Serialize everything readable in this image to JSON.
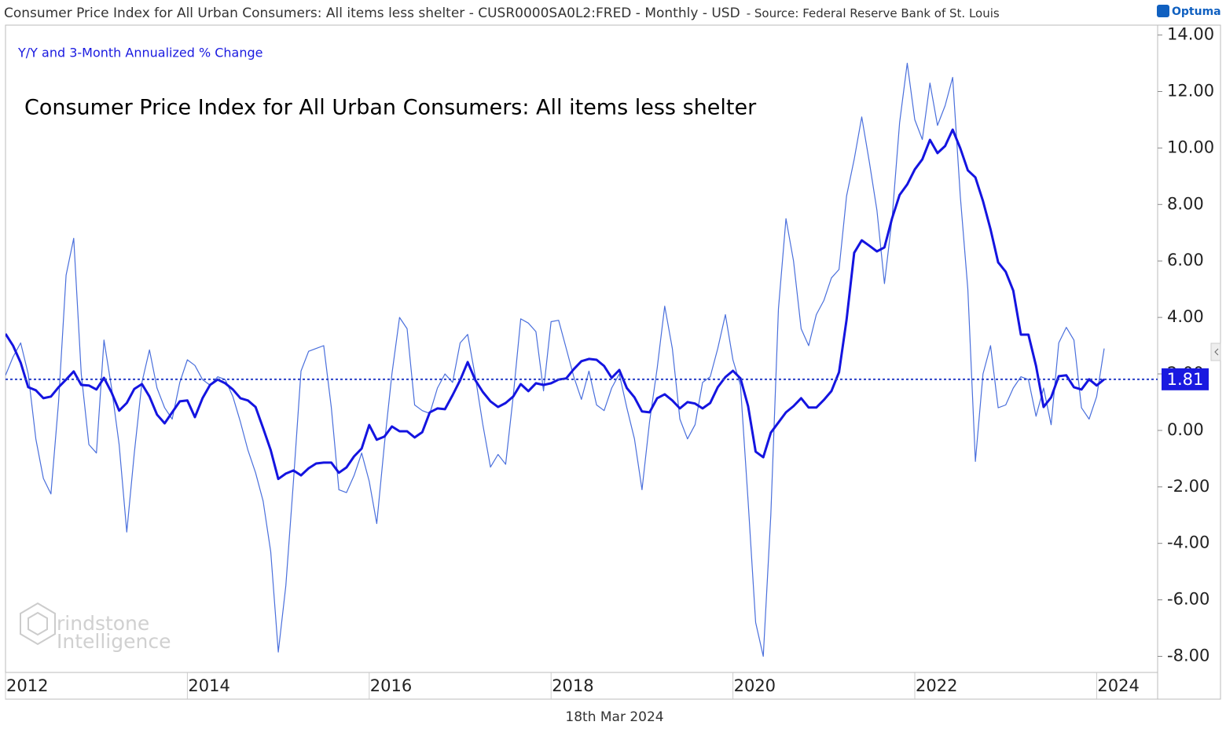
{
  "chart_data": {
    "type": "line",
    "header": "Consumer Price Index for All Urban Consumers: All items less shelter - CUSR0000SA0L2:FRED - Monthly - USD",
    "source": "- Source: Federal Reserve Bank of St. Louis",
    "logo": "Optuma",
    "subtitle": "Y/Y and 3-Month Annualized % Change",
    "title": "Consumer Price Index for All Urban Consumers: All items less shelter",
    "watermark": [
      "rindstone",
      "Intelligence"
    ],
    "date": "18th Mar 2024",
    "x": [
      "2012-01",
      "2012-02",
      "2012-03",
      "2012-04",
      "2012-05",
      "2012-06",
      "2012-07",
      "2012-08",
      "2012-09",
      "2012-10",
      "2012-11",
      "2012-12",
      "2013-01",
      "2013-02",
      "2013-03",
      "2013-04",
      "2013-05",
      "2013-06",
      "2013-07",
      "2013-08",
      "2013-09",
      "2013-10",
      "2013-11",
      "2013-12",
      "2014-01",
      "2014-02",
      "2014-03",
      "2014-04",
      "2014-05",
      "2014-06",
      "2014-07",
      "2014-08",
      "2014-09",
      "2014-10",
      "2014-11",
      "2014-12",
      "2015-01",
      "2015-02",
      "2015-03",
      "2015-04",
      "2015-05",
      "2015-06",
      "2015-07",
      "2015-08",
      "2015-09",
      "2015-10",
      "2015-11",
      "2015-12",
      "2016-01",
      "2016-02",
      "2016-03",
      "2016-04",
      "2016-05",
      "2016-06",
      "2016-07",
      "2016-08",
      "2016-09",
      "2016-10",
      "2016-11",
      "2016-12",
      "2017-01",
      "2017-02",
      "2017-03",
      "2017-04",
      "2017-05",
      "2017-06",
      "2017-07",
      "2017-08",
      "2017-09",
      "2017-10",
      "2017-11",
      "2017-12",
      "2018-01",
      "2018-02",
      "2018-03",
      "2018-04",
      "2018-05",
      "2018-06",
      "2018-07",
      "2018-08",
      "2018-09",
      "2018-10",
      "2018-11",
      "2018-12",
      "2019-01",
      "2019-02",
      "2019-03",
      "2019-04",
      "2019-05",
      "2019-06",
      "2019-07",
      "2019-08",
      "2019-09",
      "2019-10",
      "2019-11",
      "2019-12",
      "2020-01",
      "2020-02",
      "2020-03",
      "2020-04",
      "2020-05",
      "2020-06",
      "2020-07",
      "2020-08",
      "2020-09",
      "2020-10",
      "2020-11",
      "2020-12",
      "2021-01",
      "2021-02",
      "2021-03",
      "2021-04",
      "2021-05",
      "2021-06",
      "2021-07",
      "2021-08",
      "2021-09",
      "2021-10",
      "2021-11",
      "2021-12",
      "2022-01",
      "2022-02",
      "2022-03",
      "2022-04",
      "2022-05",
      "2022-06",
      "2022-07",
      "2022-08",
      "2022-09",
      "2022-10",
      "2022-11",
      "2022-12",
      "2023-01",
      "2023-02",
      "2023-03",
      "2023-04",
      "2023-05",
      "2023-06",
      "2023-07",
      "2023-08",
      "2023-09",
      "2023-10",
      "2023-11",
      "2023-12",
      "2024-01",
      "2024-02"
    ],
    "series": [
      {
        "color": "#4a6fdc",
        "width": 1.2,
        "values": [
          1.95,
          2.6,
          3.1,
          2.0,
          -0.3,
          -1.7,
          -2.25,
          1.0,
          5.5,
          6.8,
          2.0,
          -0.5,
          -0.8,
          3.2,
          1.5,
          -0.5,
          -3.6,
          -0.8,
          1.7,
          2.85,
          1.5,
          0.8,
          0.4,
          1.7,
          2.5,
          2.3,
          1.8,
          1.6,
          1.9,
          1.8,
          1.2,
          0.3,
          -0.7,
          -1.5,
          -2.5,
          -4.3,
          -7.85,
          -5.5,
          -1.8,
          2.1,
          2.8,
          2.9,
          3.0,
          0.8,
          -2.1,
          -2.2,
          -1.6,
          -0.8,
          -1.8,
          -3.3,
          -0.5,
          2.0,
          4.0,
          3.6,
          0.9,
          0.7,
          0.6,
          1.5,
          2.0,
          1.7,
          3.1,
          3.4,
          1.9,
          0.2,
          -1.3,
          -0.85,
          -1.2,
          1.2,
          3.95,
          3.8,
          3.5,
          1.4,
          3.85,
          3.9,
          2.9,
          1.9,
          1.1,
          2.1,
          0.9,
          0.7,
          1.5,
          2.0,
          0.8,
          -0.3,
          -2.1,
          0.3,
          2.2,
          4.4,
          2.9,
          0.4,
          -0.3,
          0.2,
          1.7,
          1.9,
          2.9,
          4.1,
          2.5,
          1.6,
          -2.5,
          -6.8,
          -8.0,
          -3.0,
          4.3,
          7.5,
          6.0,
          3.6,
          3.0,
          4.1,
          4.6,
          5.4,
          5.7,
          8.3,
          9.6,
          11.1,
          9.5,
          7.8,
          5.2,
          7.5,
          10.9,
          13.0,
          11.0,
          10.3,
          12.3,
          10.8,
          11.5,
          12.5,
          8.3,
          5.0,
          -1.1,
          2.0,
          3.0,
          0.8,
          0.9,
          1.5,
          1.9,
          1.8,
          0.5,
          1.5,
          0.2,
          3.1,
          3.65,
          3.2,
          0.8,
          0.4,
          1.2,
          2.9
        ]
      },
      {
        "color": "#1414e0",
        "width": 3,
        "values": [
          3.42,
          3.0,
          2.4,
          1.53,
          1.42,
          1.14,
          1.2,
          1.53,
          1.8,
          2.09,
          1.61,
          1.59,
          1.45,
          1.86,
          1.34,
          0.7,
          0.97,
          1.47,
          1.64,
          1.2,
          0.56,
          0.25,
          0.64,
          1.03,
          1.06,
          0.47,
          1.14,
          1.61,
          1.8,
          1.67,
          1.45,
          1.14,
          1.06,
          0.83,
          0.08,
          -0.7,
          -1.72,
          -1.53,
          -1.42,
          -1.59,
          -1.34,
          -1.17,
          -1.14,
          -1.14,
          -1.5,
          -1.31,
          -0.92,
          -0.64,
          0.19,
          -0.33,
          -0.22,
          0.14,
          -0.03,
          -0.03,
          -0.25,
          -0.06,
          0.64,
          0.78,
          0.75,
          1.25,
          1.78,
          2.42,
          1.78,
          1.36,
          1.03,
          0.83,
          0.97,
          1.2,
          1.64,
          1.39,
          1.67,
          1.61,
          1.67,
          1.8,
          1.84,
          2.17,
          2.45,
          2.53,
          2.5,
          2.28,
          1.86,
          2.14,
          1.5,
          1.17,
          0.67,
          0.64,
          1.14,
          1.28,
          1.06,
          0.78,
          1.0,
          0.95,
          0.78,
          0.97,
          1.53,
          1.89,
          2.11,
          1.84,
          0.86,
          -0.75,
          -0.95,
          -0.08,
          0.28,
          0.64,
          0.86,
          1.14,
          0.81,
          0.81,
          1.08,
          1.39,
          2.06,
          3.92,
          6.29,
          6.73,
          6.54,
          6.34,
          6.48,
          7.51,
          8.34,
          8.71,
          9.24,
          9.6,
          10.29,
          9.82,
          10.07,
          10.65,
          9.99,
          9.21,
          8.96,
          8.12,
          7.12,
          5.95,
          5.62,
          4.95,
          3.39,
          3.39,
          2.28,
          0.83,
          1.17,
          1.92,
          1.95,
          1.53,
          1.45,
          1.81,
          1.59,
          1.81
        ]
      }
    ],
    "last_value": 1.81,
    "xlim": [
      2012,
      2024.7
    ],
    "xticks": [
      2012,
      2014,
      2016,
      2018,
      2020,
      2022,
      2024
    ],
    "ylim": [
      -8.57,
      14.35
    ],
    "yticks": [
      {
        "value": 14,
        "label": "14.00"
      },
      {
        "value": 12,
        "label": "12.00"
      },
      {
        "value": 10,
        "label": "10.00"
      },
      {
        "value": 8,
        "label": "8.00"
      },
      {
        "value": 6,
        "label": "6.00"
      },
      {
        "value": 4,
        "label": "4.00"
      },
      {
        "value": 2,
        "label": "2.00"
      },
      {
        "value": 0,
        "label": "0.00"
      },
      {
        "value": -2,
        "label": "-2.00"
      },
      {
        "value": -4,
        "label": "-4.00"
      },
      {
        "value": -6,
        "label": "-6.00"
      },
      {
        "value": -8,
        "label": "-8.00"
      }
    ]
  }
}
